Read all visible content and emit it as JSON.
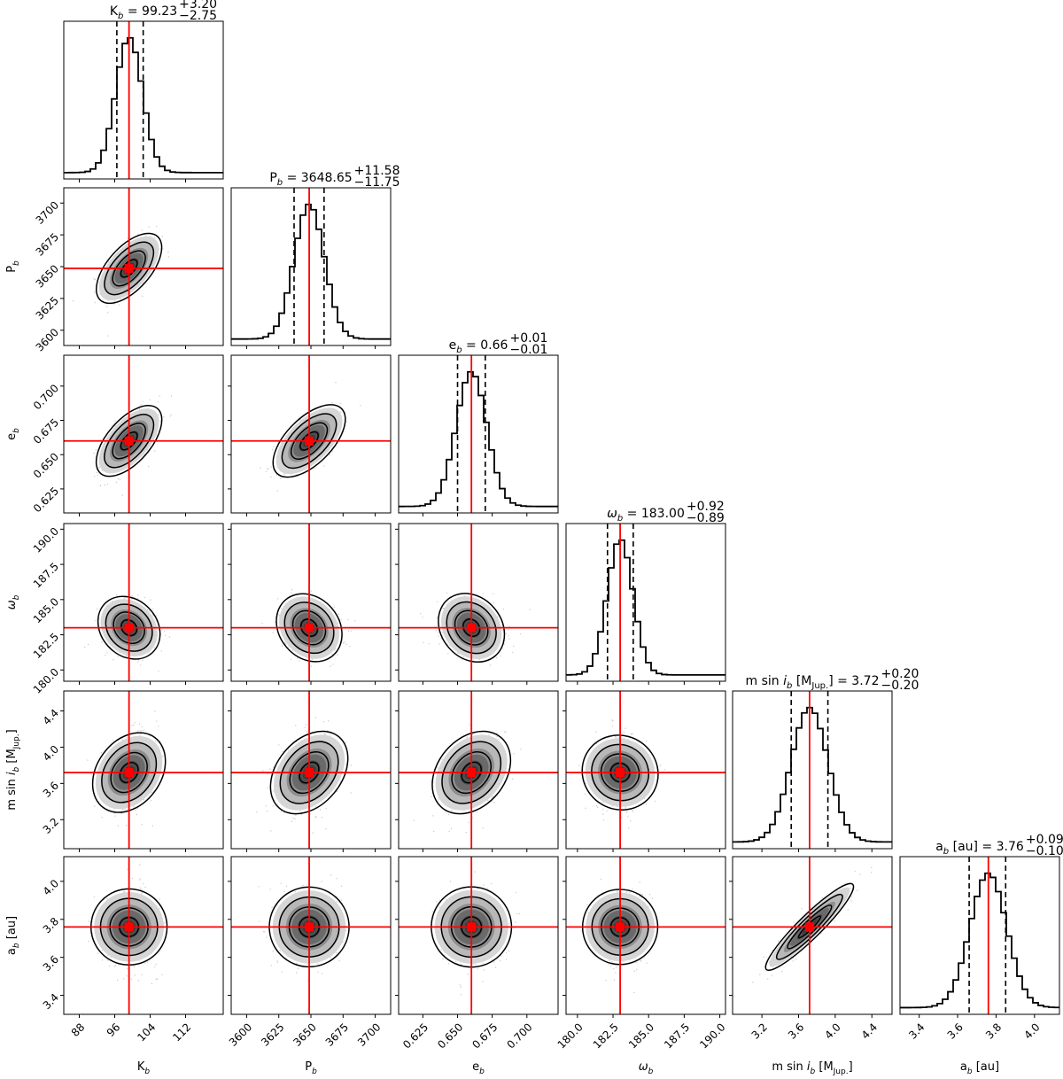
{
  "chart_data": {
    "type": "corner",
    "params": [
      {
        "key": "K",
        "label": "K_b",
        "title_base": "K",
        "title_value": "99.23",
        "title_plus": "+3.20",
        "title_minus": "−2.75",
        "unit": "",
        "range": [
          84.5,
          120.5
        ],
        "truth": 99.23,
        "q16": 96.48,
        "q84": 102.43,
        "ticks": [
          88,
          96,
          104,
          112
        ],
        "tick_labels": [
          "88",
          "96",
          "104",
          "112"
        ],
        "sigma": 3.0
      },
      {
        "key": "P",
        "label": "P_b",
        "title_base": "P",
        "title_value": "3648.65",
        "title_plus": "+11.58",
        "title_minus": "−11.75",
        "unit": "",
        "range": [
          3588,
          3712
        ],
        "truth": 3648.65,
        "q16": 3636.9,
        "q84": 3660.23,
        "ticks": [
          3600,
          3625,
          3650,
          3675,
          3700
        ],
        "tick_labels": [
          "3600",
          "3625",
          "3650",
          "3675",
          "3700"
        ],
        "sigma": 11.7
      },
      {
        "key": "e",
        "label": "e_b",
        "title_base": "e",
        "title_value": "0.66",
        "title_plus": "+0.01",
        "title_minus": "−0.01",
        "unit": "",
        "range": [
          0.6075,
          0.7225
        ],
        "truth": 0.66,
        "q16": 0.65,
        "q84": 0.67,
        "ticks": [
          0.625,
          0.65,
          0.675,
          0.7
        ],
        "tick_labels": [
          "0.625",
          "0.650",
          "0.675",
          "0.700"
        ],
        "sigma": 0.011
      },
      {
        "key": "omega",
        "label": "ω_b",
        "title_base": "ω",
        "title_value": "183.00",
        "title_plus": "+0.92",
        "title_minus": "−0.89",
        "unit": "",
        "range": [
          179.2,
          190.4
        ],
        "truth": 183.0,
        "q16": 182.11,
        "q84": 183.92,
        "ticks": [
          180.0,
          182.5,
          185.0,
          187.5,
          190.0
        ],
        "tick_labels": [
          "180.0",
          "182.5",
          "185.0",
          "187.5",
          "190.0"
        ],
        "sigma": 0.9
      },
      {
        "key": "msini",
        "label": "m sin i_b [M_Jup.]",
        "title_base": "m sin i",
        "title_value": "3.72",
        "title_plus": "+0.20",
        "title_minus": "−0.20",
        "unit": " [M_Jup.]",
        "range": [
          2.88,
          4.62
        ],
        "truth": 3.72,
        "q16": 3.52,
        "q84": 3.92,
        "ticks": [
          3.2,
          3.6,
          4.0,
          4.4
        ],
        "tick_labels": [
          "3.2",
          "3.6",
          "4.0",
          "4.4"
        ],
        "sigma": 0.2
      },
      {
        "key": "a",
        "label": "a_b [au]",
        "title_base": "a",
        "title_value": "3.76",
        "title_plus": "+0.09",
        "title_minus": "−0.10",
        "unit": " [au]",
        "range": [
          3.3,
          4.13
        ],
        "truth": 3.76,
        "q16": 3.66,
        "q84": 3.85,
        "ticks": [
          3.4,
          3.6,
          3.8,
          4.0
        ],
        "tick_labels": [
          "3.4",
          "3.6",
          "3.8",
          "4.0"
        ],
        "sigma": 0.095
      }
    ],
    "correlations": [
      [
        1.0,
        0.6,
        0.6,
        -0.2,
        0.3,
        0.0
      ],
      [
        0.6,
        1.0,
        0.6,
        -0.2,
        0.35,
        0.0
      ],
      [
        0.6,
        0.6,
        1.0,
        -0.2,
        0.3,
        0.0
      ],
      [
        -0.2,
        -0.2,
        -0.2,
        1.0,
        -0.05,
        0.0
      ],
      [
        0.3,
        0.35,
        0.3,
        -0.05,
        1.0,
        0.93
      ],
      [
        0.0,
        0.0,
        0.0,
        0.0,
        0.93,
        1.0
      ]
    ],
    "contour_levels_sigma": [
      0.5,
      1.0,
      1.5,
      2.0
    ],
    "truth_color": "#ff0000",
    "hist_color": "#000000",
    "density_color": "#3a3a3a"
  }
}
